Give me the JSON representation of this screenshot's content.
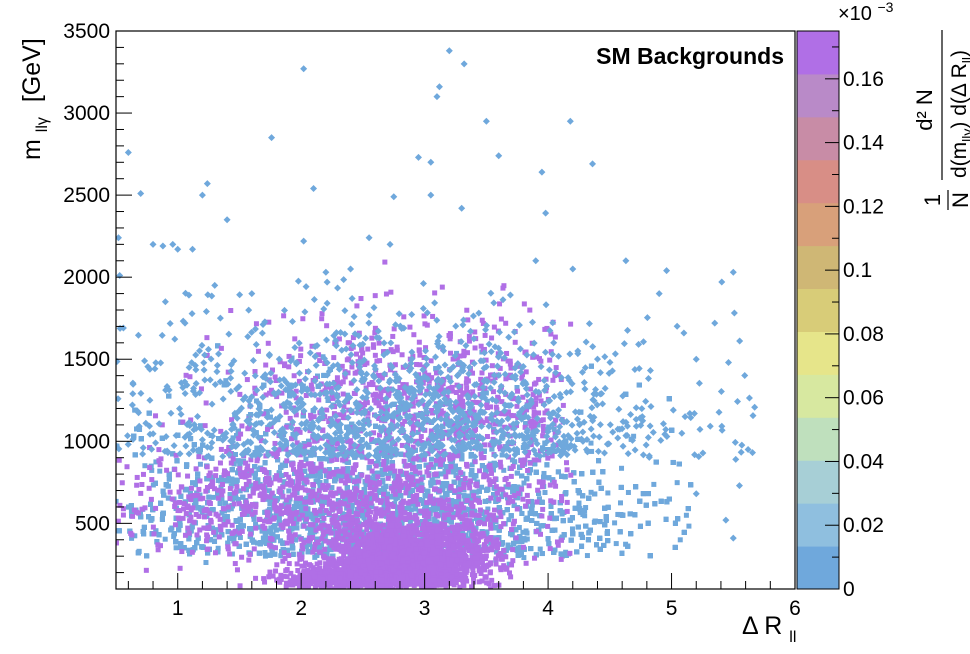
{
  "chart_data": {
    "type": "heatmap",
    "annotation": "SM Backgrounds",
    "x_axis": {
      "title_main": "Δ R",
      "title_sub": "ll",
      "range": [
        0.5,
        6
      ],
      "ticks": [
        1,
        2,
        3,
        4,
        5,
        6
      ]
    },
    "y_axis": {
      "title_main": "m",
      "title_sub": "llγ",
      "title_unit": "[GeV]",
      "range": [
        100,
        3500
      ],
      "ticks": [
        500,
        1000,
        1500,
        2000,
        2500,
        3000,
        3500
      ]
    },
    "colorbar": {
      "exponent_label": "×10",
      "exponent": "−3",
      "range": [
        0,
        0.000175
      ],
      "ticks": [
        "0",
        "0.02",
        "0.04",
        "0.06",
        "0.08",
        "0.1",
        "0.12",
        "0.14",
        "0.16"
      ],
      "title_numerator": "1",
      "title_denominator": "N",
      "title_frac_top": "d² N",
      "title_frac_bottom": "d(m",
      "title_frac_bottom_sub": "llγ",
      "title_frac_bottom_tail": ") d(Δ R",
      "title_frac_bottom_sub2": "ll",
      "title_frac_bottom_end": ")",
      "palette": [
        "#6fa8dc",
        "#8fbfdf",
        "#a7cfd6",
        "#bfe0bd",
        "#d7e8a0",
        "#e6e58a",
        "#d8cc78",
        "#cfb775",
        "#d8a07a",
        "#d88e86",
        "#c88ca6",
        "#b98ac8",
        "#b06fe6"
      ]
    },
    "density_regions": [
      {
        "x": 3.0,
        "y": 1200,
        "sx": 1.3,
        "sy": 450,
        "level": 0.003
      },
      {
        "x": 2.3,
        "y": 620,
        "sx": 1.6,
        "sy": 280,
        "level": 0.006
      },
      {
        "x": 2.9,
        "y": 360,
        "sx": 0.55,
        "sy": 130,
        "level": 0.03
      },
      {
        "x": 2.8,
        "y": 230,
        "sx": 0.55,
        "sy": 80,
        "level": 0.08
      },
      {
        "x": 2.6,
        "y": 160,
        "sx": 0.55,
        "sy": 45,
        "level": 0.16
      }
    ],
    "outlier_points": [
      [
        0.52,
        2240
      ],
      [
        0.53,
        2010
      ],
      [
        0.56,
        1690
      ],
      [
        0.6,
        2760
      ],
      [
        0.7,
        2510
      ],
      [
        0.8,
        2200
      ],
      [
        0.88,
        2190
      ],
      [
        0.96,
        2200
      ],
      [
        1.0,
        2170
      ],
      [
        1.12,
        2170
      ],
      [
        1.2,
        2500
      ],
      [
        1.24,
        2570
      ],
      [
        1.4,
        2350
      ],
      [
        1.76,
        2850
      ],
      [
        2.02,
        3270
      ],
      [
        2.02,
        2220
      ],
      [
        2.1,
        2540
      ],
      [
        2.2,
        2030
      ],
      [
        2.55,
        2240
      ],
      [
        2.72,
        2200
      ],
      [
        2.75,
        2490
      ],
      [
        2.95,
        2730
      ],
      [
        3.05,
        2700
      ],
      [
        3.05,
        2500
      ],
      [
        3.1,
        3100
      ],
      [
        3.12,
        3160
      ],
      [
        3.2,
        3380
      ],
      [
        3.32,
        3300
      ],
      [
        3.3,
        2420
      ],
      [
        3.5,
        2950
      ],
      [
        3.6,
        2740
      ],
      [
        3.95,
        2640
      ],
      [
        3.98,
        2390
      ],
      [
        4.18,
        2950
      ],
      [
        4.36,
        2690
      ],
      [
        4.63,
        2100
      ],
      [
        4.96,
        2040
      ],
      [
        5.35,
        1720
      ],
      [
        5.5,
        2030
      ],
      [
        5.62,
        950
      ],
      [
        5.52,
        890
      ],
      [
        5.55,
        730
      ],
      [
        5.44,
        520
      ],
      [
        5.5,
        410
      ],
      [
        5.2,
        680
      ],
      [
        5.1,
        1660
      ],
      [
        5.2,
        1500
      ],
      [
        4.9,
        1900
      ],
      [
        0.9,
        1850
      ],
      [
        1.3,
        1950
      ],
      [
        1.6,
        1900
      ],
      [
        3.9,
        2100
      ],
      [
        4.2,
        2050
      ],
      [
        2.4,
        2050
      ]
    ],
    "grid": false,
    "legend": "colorbar-right"
  }
}
